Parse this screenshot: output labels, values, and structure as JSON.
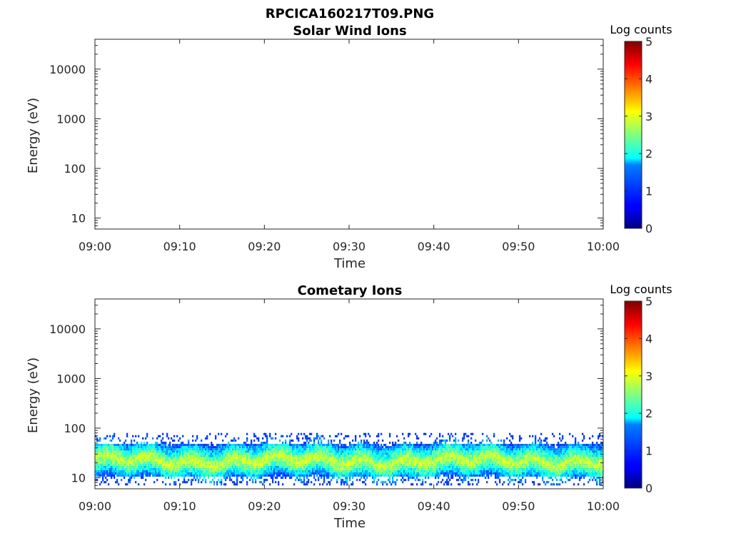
{
  "figure_title": "RPCICA160217T09.PNG",
  "chart_data": [
    {
      "type": "heatmap",
      "title": "Solar Wind Ions",
      "xlabel": "Time",
      "ylabel": "Energy (eV)",
      "x_ticks": [
        "09:00",
        "09:10",
        "09:20",
        "09:30",
        "09:40",
        "09:50",
        "10:00"
      ],
      "x_range": [
        "09:00",
        "10:00"
      ],
      "y_scale": "log",
      "y_ticks": [
        10,
        100,
        1000,
        10000
      ],
      "y_tick_labels": [
        "10",
        "100",
        "1000",
        "10000"
      ],
      "y_range": [
        6,
        40000
      ],
      "colorbar": {
        "label": "Log counts",
        "ticks": [
          0,
          1,
          2,
          3,
          4,
          5
        ],
        "tick_labels": [
          "0",
          "1",
          "2",
          "3",
          "4",
          "5"
        ],
        "range": [
          0,
          5
        ],
        "colormap": "jet"
      },
      "data": "empty",
      "band": null
    },
    {
      "type": "heatmap",
      "title": "Cometary Ions",
      "xlabel": "Time",
      "ylabel": "Energy (eV)",
      "x_ticks": [
        "09:00",
        "09:10",
        "09:20",
        "09:30",
        "09:40",
        "09:50",
        "10:00"
      ],
      "x_range": [
        "09:00",
        "10:00"
      ],
      "y_scale": "log",
      "y_ticks": [
        10,
        100,
        1000,
        10000
      ],
      "y_tick_labels": [
        "10",
        "100",
        "1000",
        "10000"
      ],
      "y_range": [
        6,
        40000
      ],
      "colorbar": {
        "label": "Log counts",
        "ticks": [
          0,
          1,
          2,
          3,
          4,
          5
        ],
        "tick_labels": [
          "0",
          "1",
          "2",
          "3",
          "4",
          "5"
        ],
        "range": [
          0,
          5
        ],
        "colormap": "jet"
      },
      "data": "ion band",
      "band": {
        "energy_min_eV": 7,
        "energy_max_eV": 80,
        "peak_energy_eV": 22,
        "peak_log_counts": 3,
        "typical_log_counts": 2
      }
    }
  ]
}
